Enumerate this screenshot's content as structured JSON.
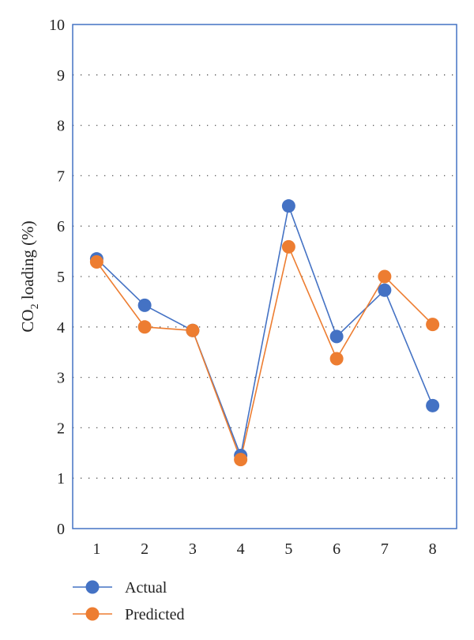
{
  "chart_data": {
    "type": "line",
    "x": [
      1,
      2,
      3,
      4,
      5,
      6,
      7,
      8
    ],
    "xticks": [
      "1",
      "2",
      "3",
      "4",
      "5",
      "6",
      "7",
      "8"
    ],
    "yticks": [
      "0",
      "1",
      "2",
      "3",
      "4",
      "5",
      "6",
      "7",
      "8",
      "9",
      "10"
    ],
    "ylim": [
      0,
      10
    ],
    "ylabel": "CO",
    "ylabel_sub": "2",
    "ylabel_rest": " loading (%)",
    "grid": "horizontal-dotted",
    "legend_position": "bottom-left",
    "series": [
      {
        "name": "Actual",
        "color": "#4472C4",
        "values": [
          5.35,
          4.43,
          3.93,
          1.45,
          6.4,
          3.81,
          4.73,
          2.44
        ]
      },
      {
        "name": "Predicted",
        "color": "#ED7D31",
        "values": [
          5.29,
          4.0,
          3.93,
          1.37,
          5.59,
          3.37,
          5.0,
          4.05
        ]
      }
    ]
  }
}
